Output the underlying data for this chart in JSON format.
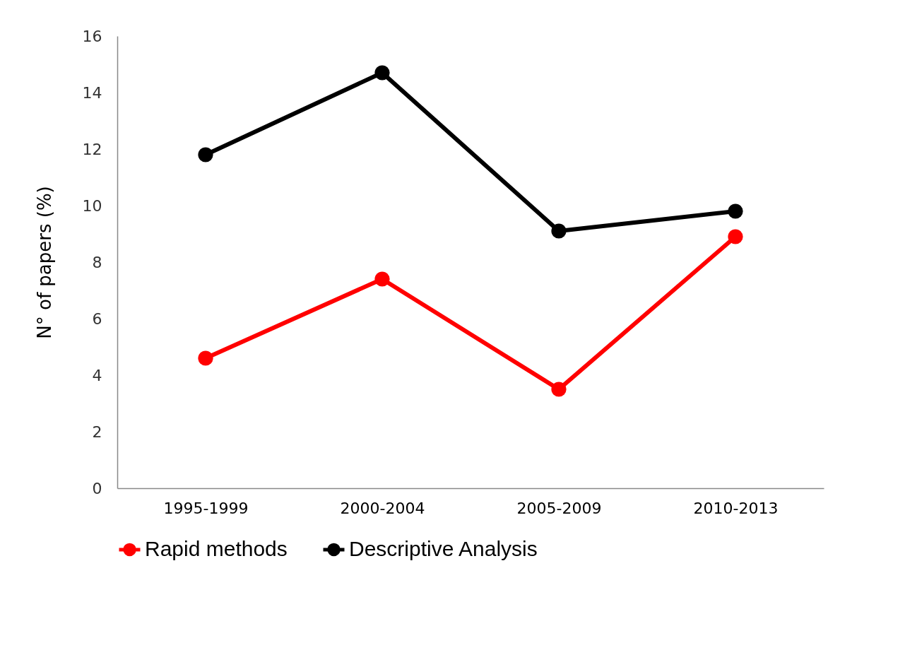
{
  "chart_data": {
    "type": "line",
    "ylabel": "N° of papers (%)",
    "categories": [
      "1995-1999",
      "2000-2004",
      "2005-2009",
      "2010-2013"
    ],
    "series": [
      {
        "name": "Rapid methods",
        "color": "#ff0000",
        "values": [
          4.6,
          7.4,
          3.5,
          8.9
        ]
      },
      {
        "name": "Descriptive Analysis",
        "color": "#000000",
        "values": [
          11.8,
          14.7,
          9.1,
          9.8
        ]
      }
    ],
    "ylim": [
      0,
      16
    ],
    "yticks": [
      0,
      2,
      4,
      6,
      8,
      10,
      12,
      14,
      16
    ],
    "grid": false,
    "legend": "bottom",
    "marker": "circle",
    "line_style": "solid"
  }
}
